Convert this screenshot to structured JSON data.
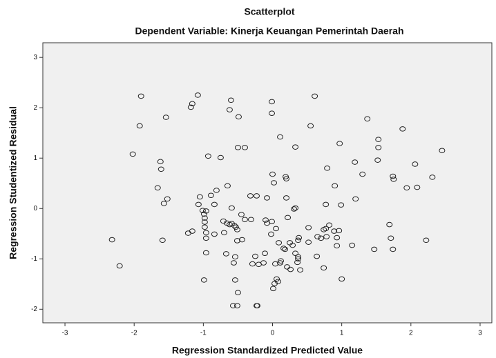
{
  "chart_data": {
    "type": "scatter",
    "title": "Scatterplot",
    "subtitle": "Dependent Variable: Kinerja Keuangan Pemerintah Daerah",
    "x_label": "Regression Standardized Predicted Value",
    "y_label": "Regression Studentized Residual",
    "x": [
      -1.9,
      -1.08,
      -1.16,
      -1.18,
      -0.6,
      -0.62,
      -0.01,
      -0.01,
      0.61,
      -1.92,
      -1.54,
      -0.49,
      0.55,
      1.37,
      1.88,
      0.11,
      0.97,
      -0.5,
      -0.4,
      0.33,
      -2.02,
      -0.93,
      -0.75,
      -1.62,
      -1.61,
      1.53,
      1.53,
      1.52,
      1.19,
      1.3,
      2.45,
      2.06,
      1.74,
      1.75,
      0,
      0.02,
      0.19,
      0.2,
      -0.65,
      -1.66,
      0.79,
      0.9,
      1.94,
      2.09,
      2.31,
      -1.52,
      -1.57,
      -0.81,
      -1.05,
      -0.89,
      -0.84,
      -1.07,
      -0.32,
      -0.23,
      -0.08,
      0.2,
      0.77,
      0.99,
      1.2,
      -1.01,
      -0.96,
      -0.99,
      -0.59,
      -0.45,
      -0.4,
      -0.71,
      -0.98,
      -0.98,
      -0.66,
      -0.98,
      -0.62,
      -0.59,
      -0.55,
      -0.31,
      -0.1,
      -0.08,
      -0.01,
      0.31,
      0.33,
      0.22,
      0.05,
      -0.51,
      -0.53,
      -1.22,
      -1.16,
      -0.96,
      -0.96,
      -0.84,
      -0.7,
      -1.59,
      -2.32,
      -0.51,
      -0.44,
      -0.02,
      0.09,
      0.52,
      0.77,
      0.82,
      0.74,
      0.89,
      0.96,
      0.93,
      0.78,
      0.7,
      0.65,
      0.38,
      0.37,
      0.29,
      0.25,
      0.52,
      0.93,
      1.15,
      1.71,
      1.69,
      2.22,
      1.47,
      -0.96,
      -0.67,
      -0.54,
      -0.11,
      -0.25,
      0.16,
      0.18,
      0.33,
      0.37,
      0.64,
      1.74,
      -2.21,
      -0.29,
      -0.2,
      -0.56,
      -0.13,
      0.04,
      0.12,
      0.11,
      0.36,
      0.4,
      0.21,
      0.26,
      0.37,
      0.74,
      -0.99,
      -0.54,
      0.06,
      0.03,
      0.08,
      0.01,
      -0.5,
      1.0,
      -0.51,
      -0.57,
      -0.22,
      -0.23
    ],
    "values": [
      2.23,
      2.25,
      2.08,
      2.01,
      2.15,
      1.96,
      2.12,
      1.89,
      2.23,
      1.64,
      1.81,
      1.82,
      1.64,
      1.78,
      1.58,
      1.42,
      1.29,
      1.21,
      1.21,
      1.22,
      1.08,
      1.04,
      1.01,
      0.93,
      0.78,
      1.37,
      1.21,
      0.96,
      0.92,
      0.68,
      1.15,
      0.88,
      0.64,
      0.58,
      0.68,
      0.51,
      0.63,
      0.59,
      0.45,
      0.41,
      0.8,
      0.45,
      0.41,
      0.42,
      0.62,
      0.19,
      0.1,
      0.36,
      0.23,
      0.26,
      0.08,
      0.08,
      0.25,
      0.25,
      0.21,
      0.21,
      0.08,
      0.07,
      0.19,
      -0.04,
      -0.05,
      -0.11,
      0.01,
      -0.12,
      -0.22,
      -0.25,
      -0.19,
      -0.27,
      -0.29,
      -0.37,
      -0.32,
      -0.3,
      -0.34,
      -0.22,
      -0.23,
      -0.29,
      -0.26,
      -0.01,
      0.01,
      -0.18,
      -0.4,
      -0.42,
      -0.37,
      -0.49,
      -0.45,
      -0.48,
      -0.59,
      -0.51,
      -0.48,
      -0.63,
      -0.62,
      -0.64,
      -0.62,
      -0.51,
      -0.68,
      -0.38,
      -0.4,
      -0.33,
      -0.42,
      -0.45,
      -0.44,
      -0.58,
      -0.56,
      -0.59,
      -0.56,
      -0.58,
      -0.63,
      -0.73,
      -0.68,
      -0.67,
      -0.74,
      -0.73,
      -0.59,
      -0.32,
      -0.63,
      -0.81,
      -0.88,
      -0.9,
      -0.96,
      -0.89,
      -0.95,
      -0.79,
      -0.81,
      -0.89,
      -0.96,
      -0.95,
      -0.81,
      -1.14,
      -1.1,
      -1.11,
      -1.08,
      -1.08,
      -1.1,
      -1.04,
      -1.08,
      -1.07,
      -1.22,
      -1.16,
      -1.21,
      -1.0,
      -1.18,
      -1.42,
      -1.42,
      -1.4,
      -1.49,
      -1.45,
      -1.59,
      -1.67,
      -1.4,
      -1.93,
      -1.93,
      -1.93,
      -1.93
    ],
    "xlim": [
      -3.32,
      3.17
    ],
    "xticks": [
      -3,
      -2,
      -1,
      0,
      1,
      2,
      3
    ],
    "ylim": [
      -2.27,
      3.29
    ],
    "yticks": [
      -2,
      -1,
      0,
      1,
      2,
      3
    ],
    "color": "#222222",
    "background": "#f0f0f0",
    "grid": false
  }
}
